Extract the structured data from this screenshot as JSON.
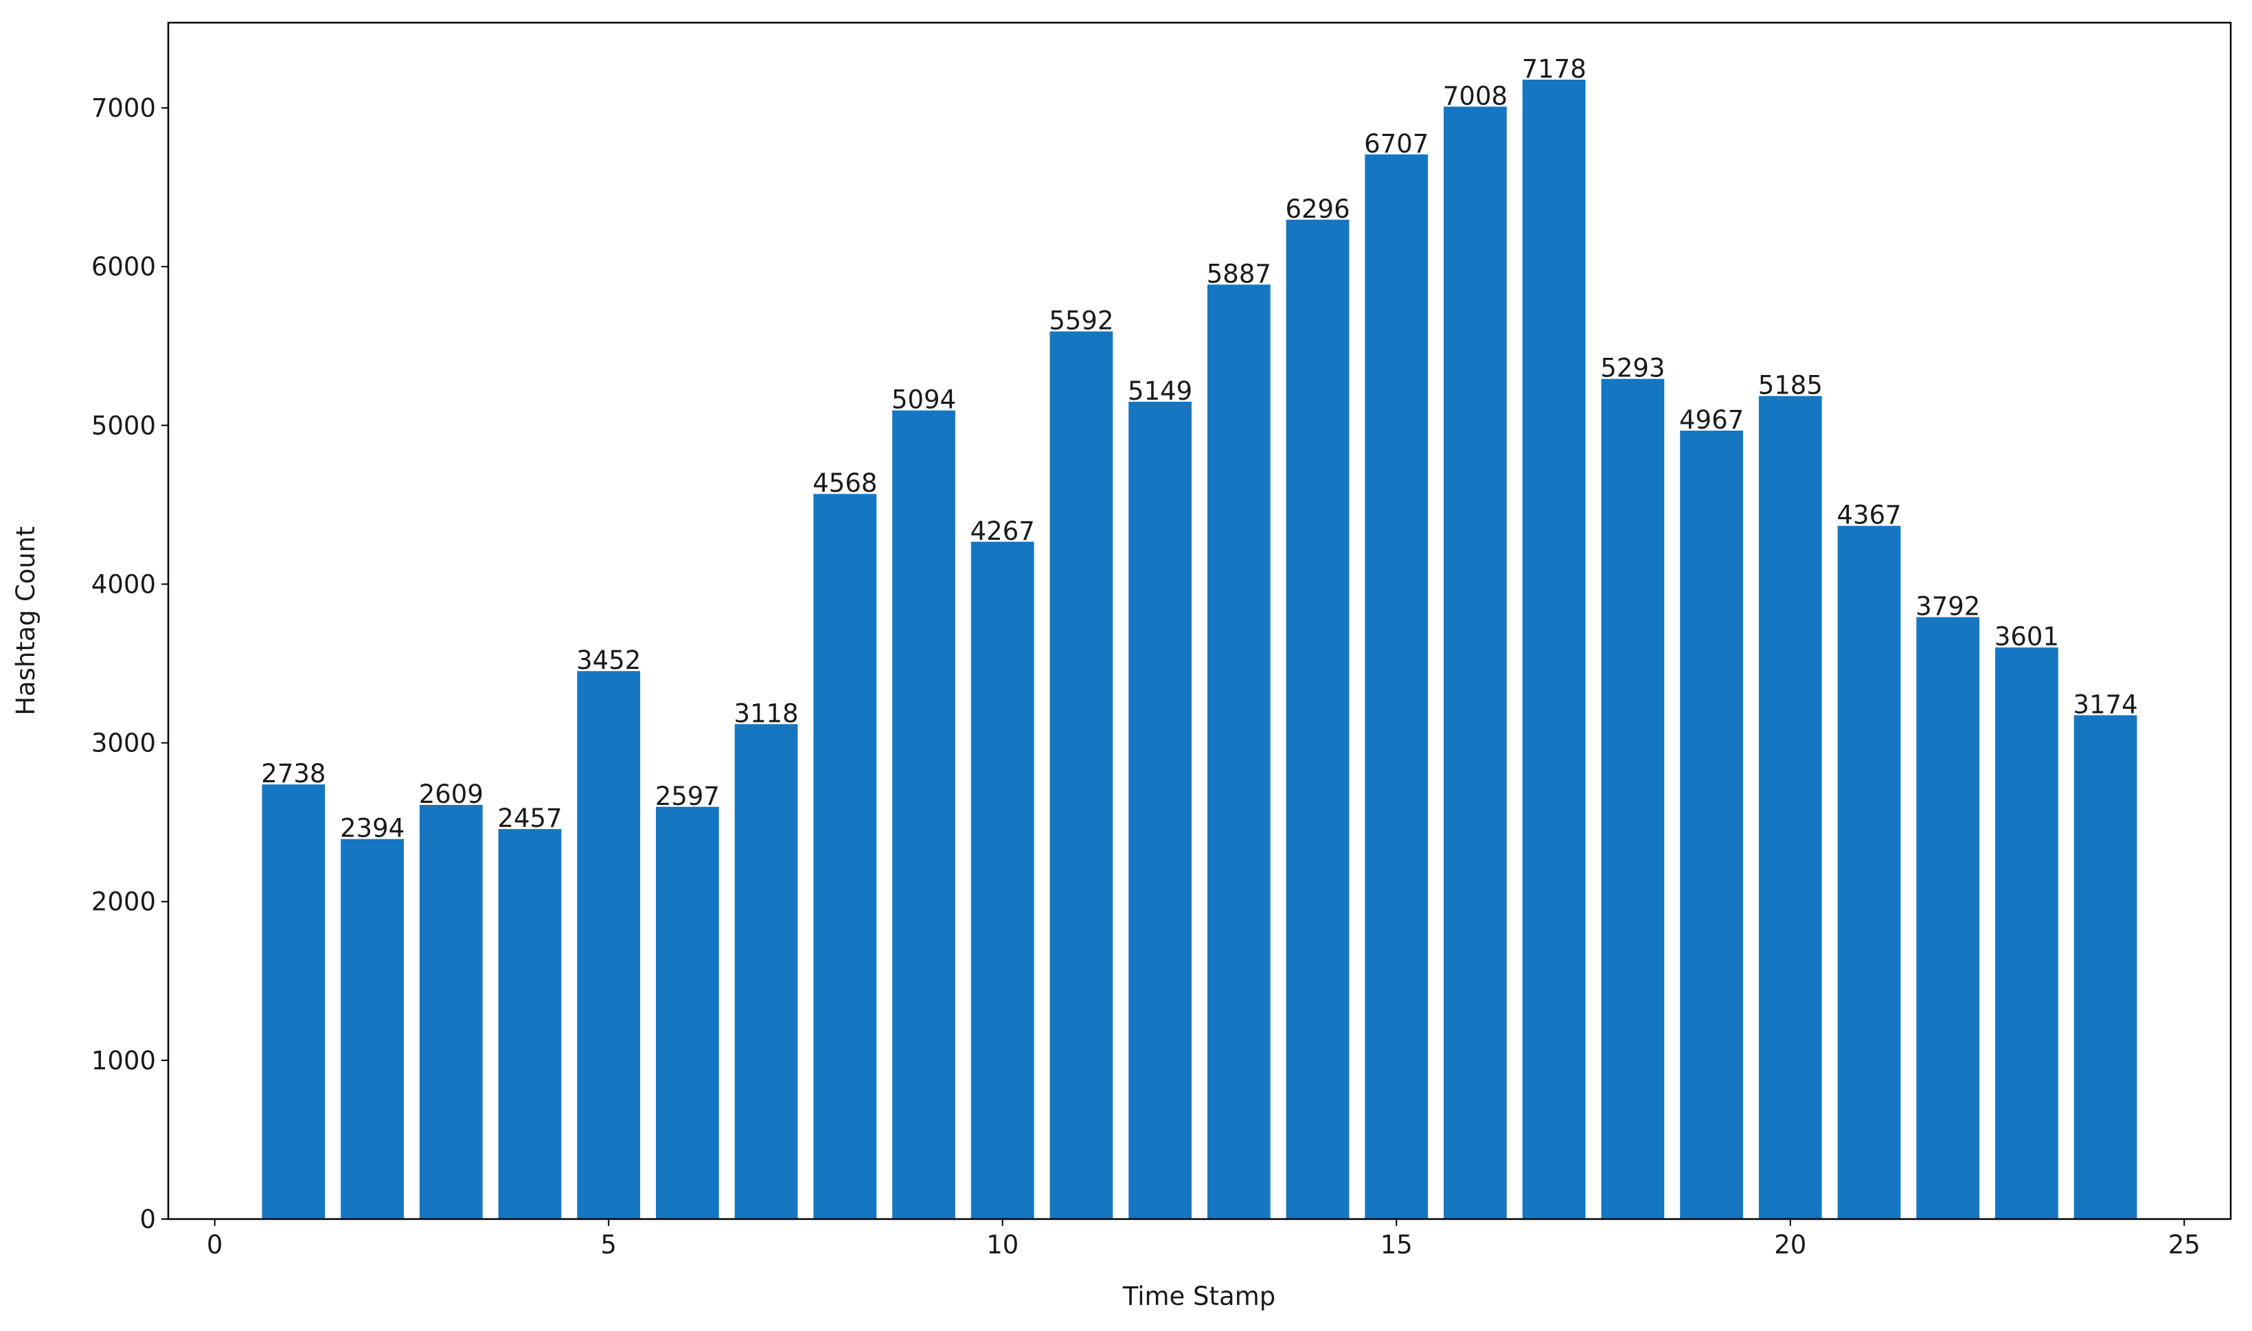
{
  "chart_data": {
    "type": "bar",
    "x": [
      1,
      2,
      3,
      4,
      5,
      6,
      7,
      8,
      9,
      10,
      11,
      12,
      13,
      14,
      15,
      16,
      17,
      18,
      19,
      20,
      21,
      22,
      23,
      24
    ],
    "values": [
      2738,
      2394,
      2609,
      2457,
      3452,
      2597,
      3118,
      4568,
      5094,
      4267,
      5592,
      5149,
      5887,
      6296,
      6707,
      7008,
      7178,
      5293,
      4967,
      5185,
      4367,
      3792,
      3601,
      3174
    ],
    "color": "#1577c2",
    "xlabel": "Time Stamp",
    "ylabel": "Hashtag Count",
    "xlim": [
      -0.59,
      25.59
    ],
    "xticks": [
      0,
      5,
      10,
      15,
      20,
      25
    ],
    "ylim": [
      0,
      7537
    ],
    "yticks": [
      0,
      1000,
      2000,
      3000,
      4000,
      5000,
      6000,
      7000
    ],
    "bar_width": 0.8
  }
}
